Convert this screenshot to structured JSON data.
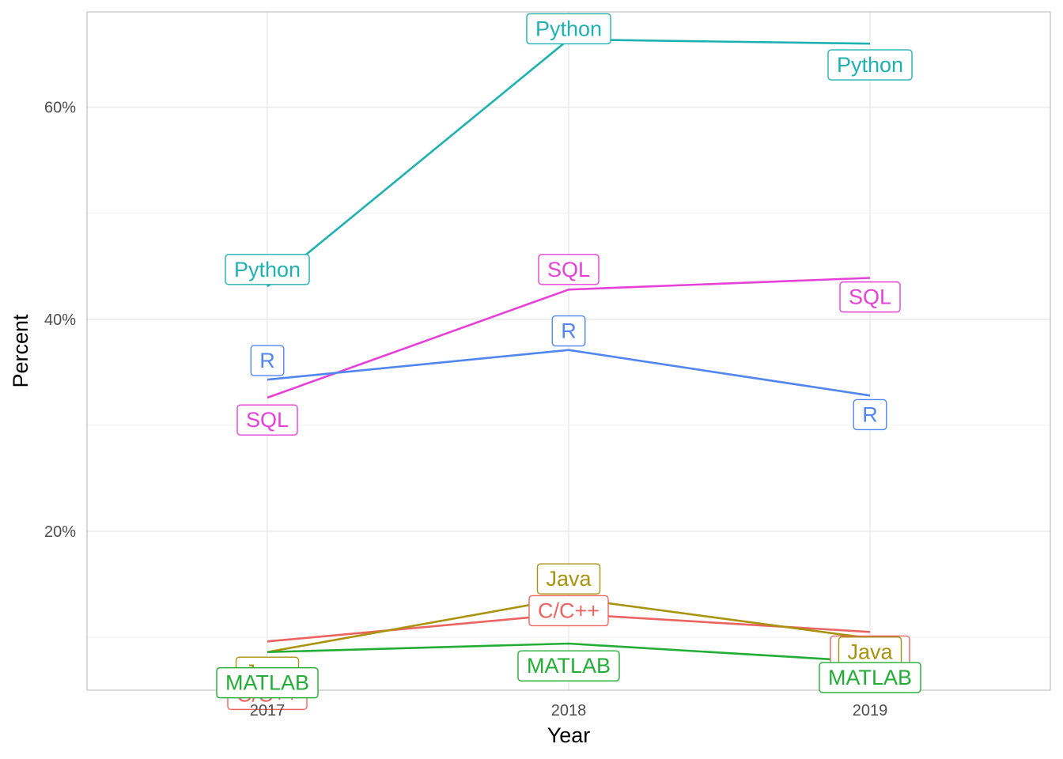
{
  "chart_data": {
    "type": "line",
    "title": "",
    "xlabel": "Year",
    "ylabel": "Percent",
    "x": [
      "2017",
      "2018",
      "2019"
    ],
    "ylim": [
      5,
      69
    ],
    "y_ticks": [
      20,
      40,
      60
    ],
    "y_tick_labels": [
      "20%",
      "40%",
      "60%"
    ],
    "grid": true,
    "legend": "none",
    "series": [
      {
        "name": "Python",
        "color": "#1fb1b1",
        "values": [
          43.1,
          66.4,
          66.0
        ],
        "label_offsets": [
          1.6,
          1.0,
          -2.0
        ]
      },
      {
        "name": "SQL",
        "color": "#e640d8",
        "values": [
          32.6,
          42.8,
          43.9
        ],
        "label_offsets": [
          -2.1,
          1.9,
          -1.8
        ]
      },
      {
        "name": "R",
        "color": "#5186f0",
        "values": [
          34.3,
          37.1,
          32.8
        ],
        "label_offsets": [
          1.8,
          1.8,
          -1.8
        ]
      },
      {
        "name": "C/C++",
        "color": "#ec6461",
        "values": [
          9.6,
          12.2,
          10.5
        ],
        "label_offsets": [
          -5.0,
          0.3,
          -1.8
        ]
      },
      {
        "name": "Java",
        "color": "#a8920e",
        "values": [
          8.6,
          13.7,
          9.9
        ],
        "label_offsets": [
          -1.9,
          1.8,
          -1.3
        ]
      },
      {
        "name": "MATLAB",
        "color": "#22ad35",
        "values": [
          8.6,
          9.4,
          7.7
        ],
        "label_offsets": [
          -2.9,
          -2.1,
          -1.5
        ]
      }
    ]
  }
}
